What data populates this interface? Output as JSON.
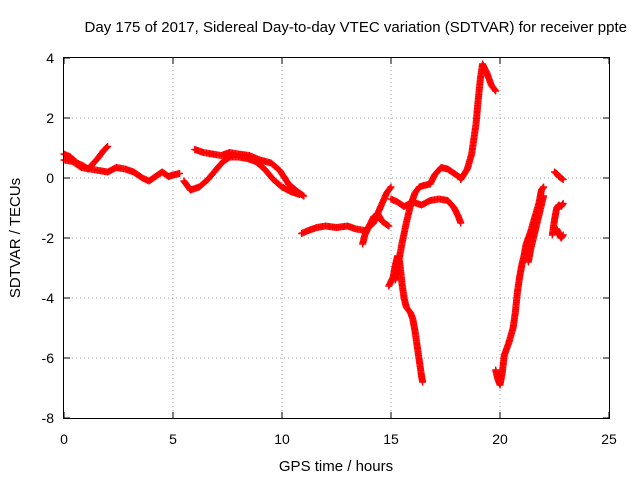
{
  "chart_data": {
    "type": "scatter",
    "title": "Day 175 of 2017, Sidereal Day-to-day VTEC variation (SDTVAR) for receiver ppte",
    "xlabel": "GPS time / hours",
    "ylabel": "SDTVAR / TECUs",
    "xlim": [
      0,
      25
    ],
    "ylim": [
      -8,
      4
    ],
    "xticks": [
      "0",
      "5",
      "10",
      "15",
      "20",
      "25"
    ],
    "yticks": [
      "-8",
      "-6",
      "-4",
      "-2",
      "0",
      "2",
      "4"
    ],
    "grid": true,
    "marker": "+",
    "color": "#ff0000",
    "series": [
      {
        "name": "SDTVAR",
        "segments": [
          [
            [
              0.0,
              0.8
            ],
            [
              0.3,
              0.7
            ],
            [
              0.6,
              0.5
            ],
            [
              0.9,
              0.4
            ],
            [
              1.1,
              0.3
            ],
            [
              1.3,
              0.45
            ],
            [
              1.6,
              0.7
            ],
            [
              1.8,
              0.9
            ],
            [
              2.0,
              1.05
            ]
          ],
          [
            [
              0.0,
              0.6
            ],
            [
              0.4,
              0.55
            ],
            [
              0.8,
              0.35
            ],
            [
              1.2,
              0.3
            ],
            [
              1.6,
              0.25
            ],
            [
              2.0,
              0.2
            ],
            [
              2.4,
              0.35
            ],
            [
              2.8,
              0.3
            ],
            [
              3.2,
              0.2
            ],
            [
              3.6,
              0.0
            ],
            [
              3.9,
              -0.1
            ],
            [
              4.2,
              0.05
            ],
            [
              4.5,
              0.2
            ],
            [
              4.8,
              0.05
            ],
            [
              5.0,
              0.1
            ],
            [
              5.3,
              0.15
            ]
          ],
          [
            [
              5.5,
              -0.1
            ],
            [
              5.8,
              -0.4
            ],
            [
              6.2,
              -0.3
            ],
            [
              6.6,
              -0.05
            ],
            [
              7.0,
              0.3
            ],
            [
              7.3,
              0.55
            ],
            [
              7.6,
              0.7
            ],
            [
              8.0,
              0.7
            ],
            [
              8.4,
              0.65
            ],
            [
              8.8,
              0.55
            ],
            [
              9.2,
              0.3
            ],
            [
              9.6,
              -0.05
            ],
            [
              10.0,
              -0.3
            ],
            [
              10.4,
              -0.45
            ],
            [
              10.8,
              -0.55
            ]
          ],
          [
            [
              6.0,
              0.95
            ],
            [
              6.4,
              0.85
            ],
            [
              6.8,
              0.8
            ],
            [
              7.2,
              0.75
            ],
            [
              7.6,
              0.85
            ],
            [
              8.0,
              0.8
            ],
            [
              8.5,
              0.75
            ],
            [
              9.0,
              0.6
            ],
            [
              9.5,
              0.5
            ],
            [
              9.9,
              0.25
            ],
            [
              10.3,
              -0.2
            ],
            [
              10.7,
              -0.45
            ],
            [
              11.0,
              -0.6
            ]
          ],
          [
            [
              10.9,
              -1.85
            ],
            [
              11.2,
              -1.75
            ],
            [
              11.6,
              -1.65
            ],
            [
              12.0,
              -1.6
            ],
            [
              12.5,
              -1.65
            ],
            [
              13.0,
              -1.6
            ],
            [
              13.4,
              -1.7
            ],
            [
              13.8,
              -1.75
            ],
            [
              14.2,
              -1.5
            ],
            [
              14.5,
              -1.0
            ],
            [
              14.8,
              -0.5
            ],
            [
              15.0,
              -0.3
            ]
          ],
          [
            [
              13.7,
              -2.2
            ],
            [
              13.8,
              -1.9
            ],
            [
              14.0,
              -1.6
            ],
            [
              14.2,
              -1.3
            ],
            [
              14.4,
              -1.2
            ],
            [
              14.6,
              -1.45
            ],
            [
              14.9,
              -1.6
            ]
          ],
          [
            [
              14.9,
              -3.6
            ],
            [
              15.1,
              -3.3
            ],
            [
              15.2,
              -2.9
            ],
            [
              15.3,
              -2.6
            ],
            [
              15.4,
              -2.8
            ],
            [
              15.5,
              -3.5
            ],
            [
              15.6,
              -4.0
            ],
            [
              15.7,
              -4.3
            ],
            [
              15.9,
              -4.5
            ],
            [
              16.0,
              -4.7
            ],
            [
              16.1,
              -5.1
            ],
            [
              16.2,
              -5.6
            ],
            [
              16.3,
              -6.1
            ],
            [
              16.4,
              -6.6
            ],
            [
              16.45,
              -6.8
            ]
          ],
          [
            [
              15.2,
              -3.4
            ],
            [
              15.3,
              -3.0
            ],
            [
              15.5,
              -2.2
            ],
            [
              15.7,
              -1.5
            ],
            [
              15.9,
              -0.9
            ],
            [
              16.1,
              -0.5
            ],
            [
              16.3,
              -0.3
            ],
            [
              16.5,
              -0.25
            ],
            [
              16.8,
              -0.2
            ],
            [
              17.0,
              0.1
            ],
            [
              17.3,
              0.35
            ],
            [
              17.6,
              0.3
            ],
            [
              17.9,
              0.15
            ],
            [
              18.2,
              0.0
            ]
          ],
          [
            [
              15.0,
              -0.7
            ],
            [
              15.3,
              -0.8
            ],
            [
              15.6,
              -0.95
            ],
            [
              16.0,
              -0.8
            ],
            [
              16.4,
              -0.9
            ],
            [
              16.8,
              -0.75
            ],
            [
              17.2,
              -0.7
            ],
            [
              17.6,
              -0.75
            ],
            [
              17.9,
              -1.0
            ],
            [
              18.1,
              -1.3
            ],
            [
              18.2,
              -1.5
            ]
          ],
          [
            [
              18.2,
              -0.05
            ],
            [
              18.5,
              0.3
            ],
            [
              18.7,
              0.8
            ],
            [
              18.9,
              1.8
            ],
            [
              19.0,
              2.6
            ],
            [
              19.1,
              3.3
            ],
            [
              19.2,
              3.8
            ],
            [
              19.4,
              3.5
            ],
            [
              19.6,
              3.1
            ],
            [
              19.8,
              2.9
            ]
          ],
          [
            [
              19.8,
              -6.4
            ],
            [
              19.9,
              -6.7
            ],
            [
              20.0,
              -6.9
            ],
            [
              20.1,
              -6.5
            ],
            [
              20.2,
              -5.9
            ],
            [
              20.4,
              -5.5
            ],
            [
              20.6,
              -5.0
            ],
            [
              20.7,
              -4.5
            ],
            [
              20.8,
              -3.8
            ],
            [
              20.9,
              -3.3
            ],
            [
              21.0,
              -2.9
            ],
            [
              21.1,
              -2.6
            ],
            [
              21.2,
              -2.2
            ],
            [
              21.4,
              -1.8
            ],
            [
              21.6,
              -1.3
            ],
            [
              21.8,
              -0.8
            ],
            [
              21.9,
              -0.4
            ],
            [
              22.0,
              -0.3
            ]
          ],
          [
            [
              21.3,
              -2.8
            ],
            [
              21.4,
              -2.4
            ],
            [
              21.6,
              -1.8
            ],
            [
              21.8,
              -1.2
            ],
            [
              22.0,
              -0.6
            ]
          ],
          [
            [
              22.4,
              -1.9
            ],
            [
              22.5,
              -1.4
            ],
            [
              22.6,
              -1.0
            ],
            [
              22.7,
              -0.9
            ],
            [
              22.8,
              -0.95
            ],
            [
              22.9,
              -0.85
            ]
          ],
          [
            [
              22.5,
              0.2
            ],
            [
              22.6,
              0.15
            ],
            [
              22.7,
              0.05
            ],
            [
              22.8,
              0.0
            ],
            [
              22.9,
              -0.05
            ]
          ],
          [
            [
              22.6,
              -1.7
            ],
            [
              22.7,
              -1.85
            ],
            [
              22.8,
              -2.0
            ],
            [
              22.9,
              -1.9
            ]
          ]
        ]
      }
    ]
  }
}
